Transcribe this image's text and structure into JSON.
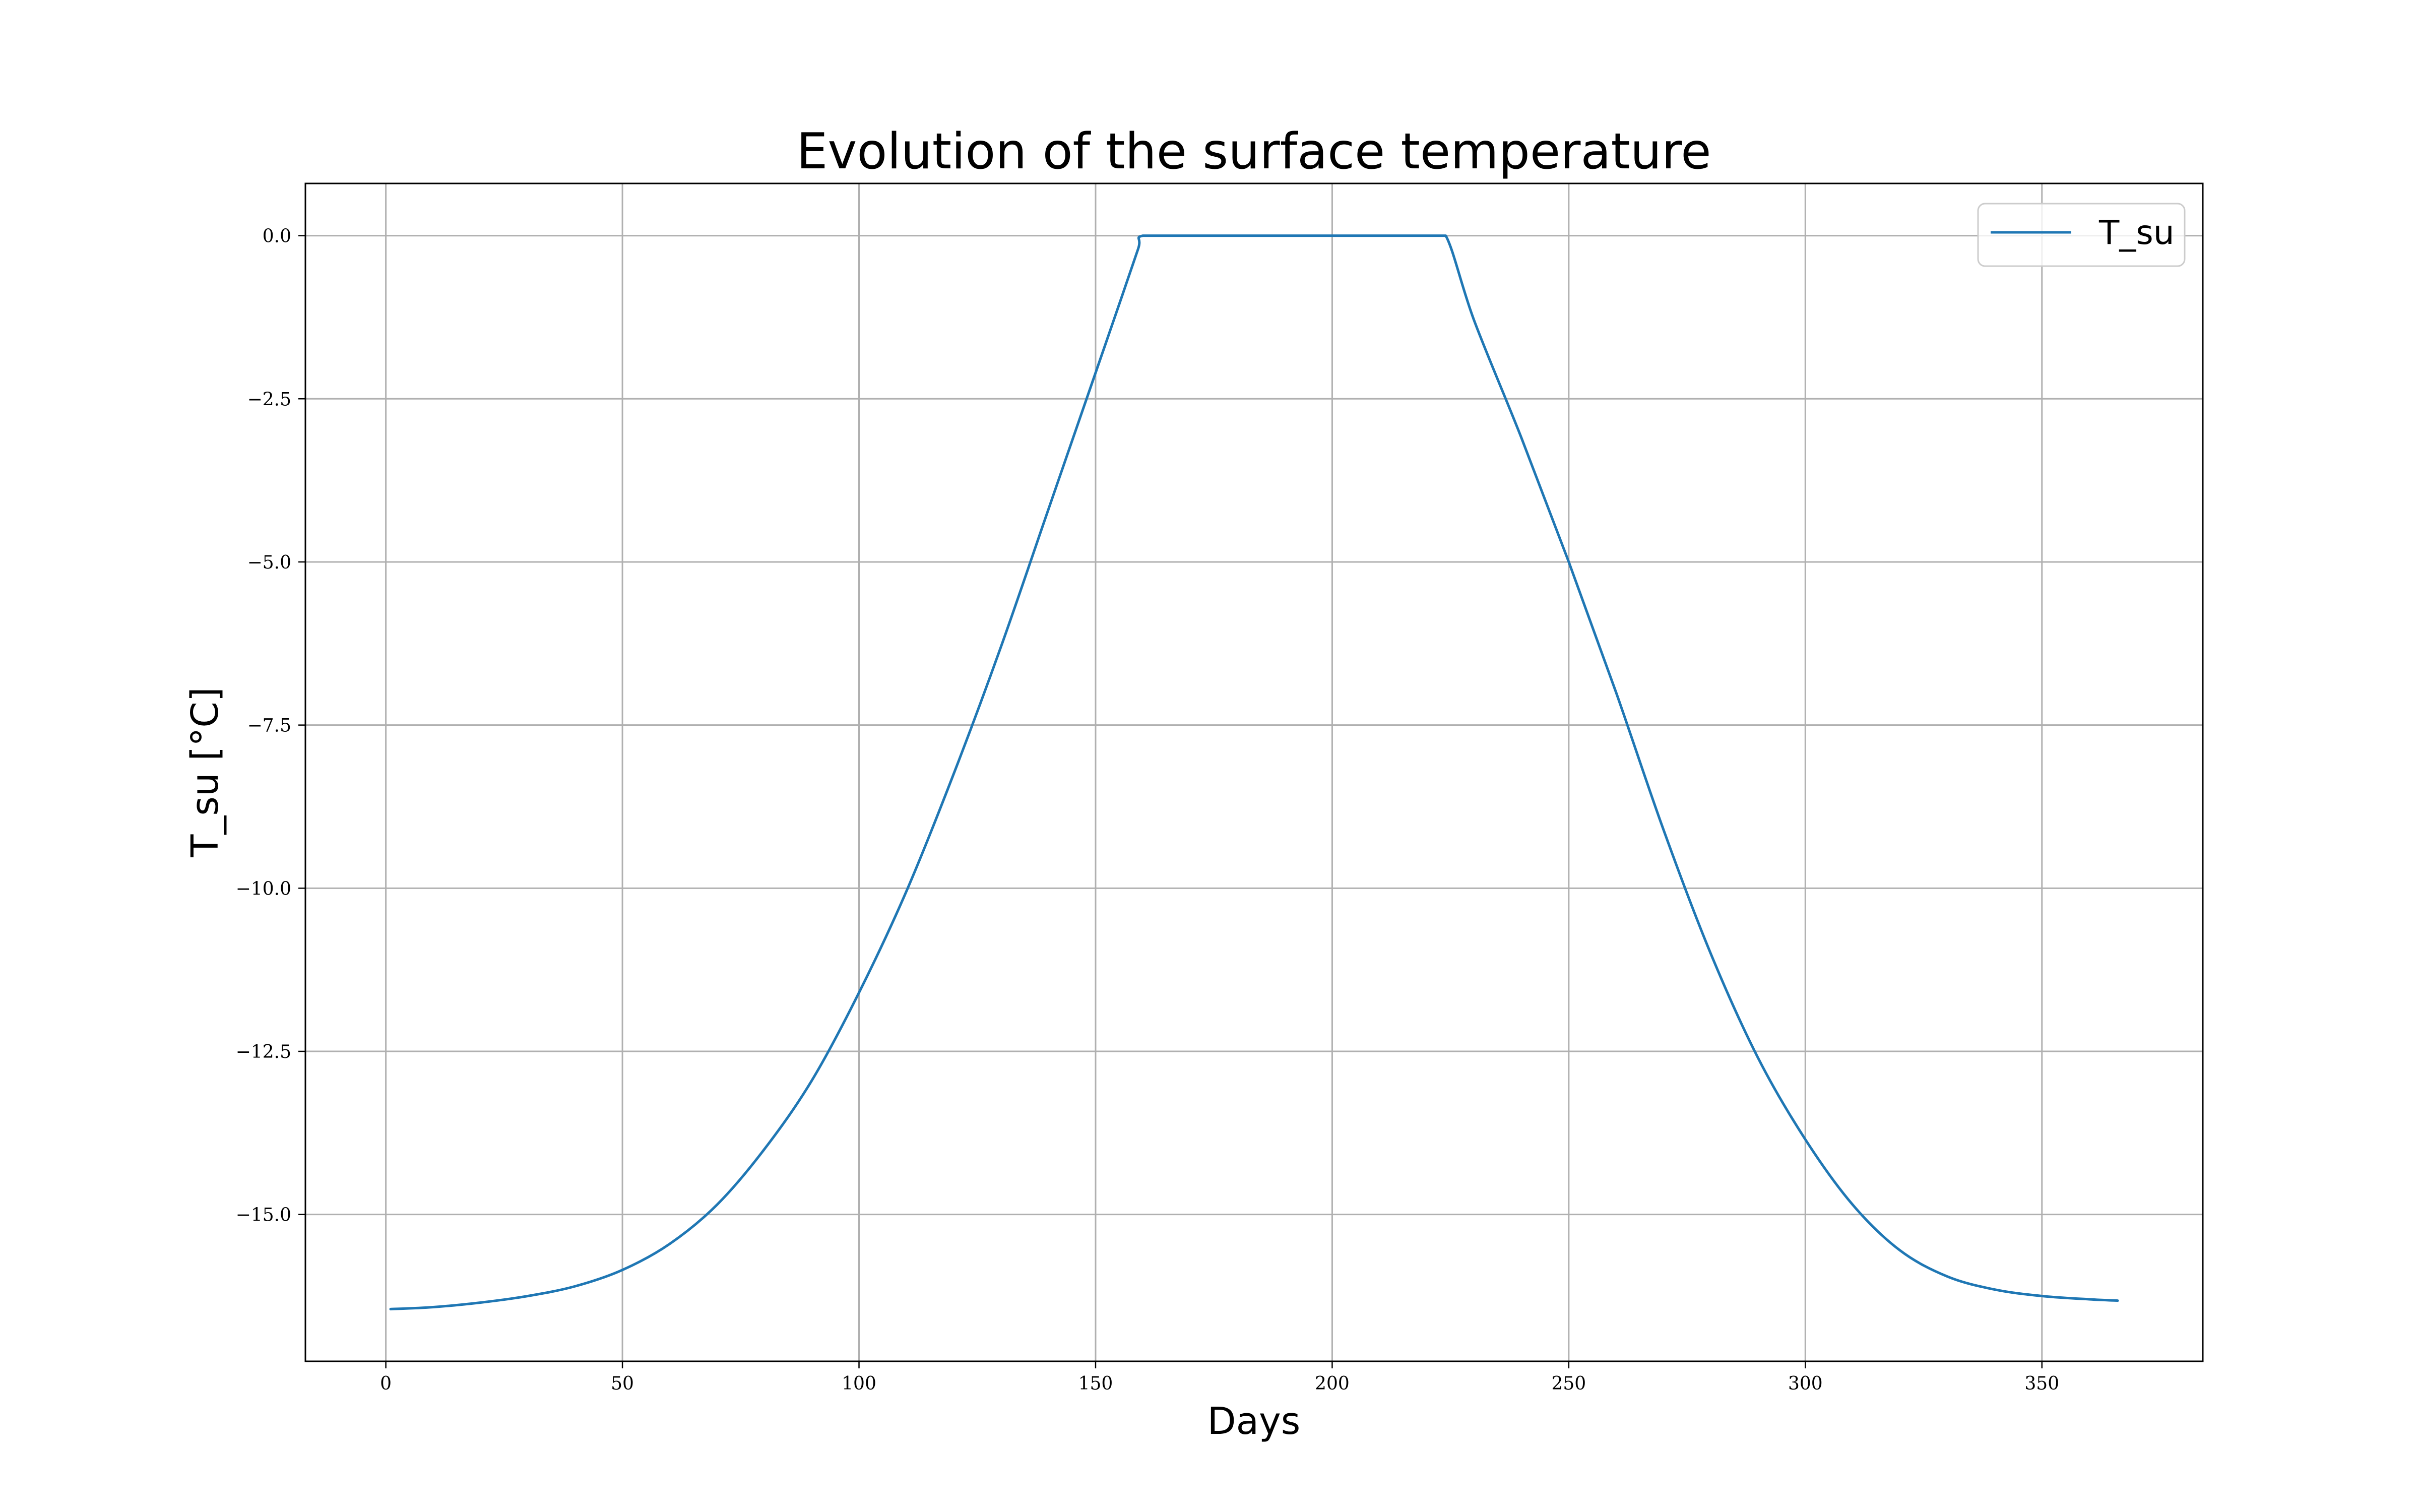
{
  "chart_data": {
    "type": "line",
    "title": "Evolution of the surface temperature",
    "xlabel": "Days",
    "ylabel": "T_su [°C]",
    "xlim": [
      -17,
      384
    ],
    "ylim": [
      -17.25,
      0.8
    ],
    "xticks": [
      0,
      50,
      100,
      150,
      200,
      250,
      300,
      350
    ],
    "xtick_labels": [
      "0",
      "50",
      "100",
      "150",
      "200",
      "250",
      "300",
      "350"
    ],
    "yticks": [
      0.0,
      -2.5,
      -5.0,
      -7.5,
      -10.0,
      -12.5,
      -15.0
    ],
    "ytick_labels": [
      "0.0",
      "−2.5",
      "−5.0",
      "−7.5",
      "−10.0",
      "−12.5",
      "−15.0"
    ],
    "grid": true,
    "legend_position": "top-right",
    "series": [
      {
        "name": "T_su",
        "color": "#1f77b4",
        "x": [
          1,
          10,
          20,
          30,
          40,
          50,
          60,
          70,
          80,
          90,
          100,
          110,
          120,
          130,
          140,
          150,
          155,
          159,
          160,
          170,
          180,
          190,
          200,
          210,
          220,
          224,
          230,
          240,
          250,
          260,
          270,
          280,
          290,
          300,
          310,
          320,
          330,
          340,
          350,
          360,
          366
        ],
        "y": [
          -16.45,
          -16.42,
          -16.35,
          -16.25,
          -16.1,
          -15.85,
          -15.45,
          -14.85,
          -14.0,
          -12.95,
          -11.6,
          -10.05,
          -8.25,
          -6.3,
          -4.2,
          -2.1,
          -1.05,
          -0.2,
          0.0,
          0.0,
          0.0,
          0.0,
          0.0,
          0.0,
          0.0,
          0.0,
          -1.3,
          -3.1,
          -5.0,
          -7.0,
          -9.1,
          -11.0,
          -12.6,
          -13.85,
          -14.85,
          -15.55,
          -15.95,
          -16.15,
          -16.25,
          -16.3,
          -16.32
        ]
      }
    ]
  }
}
